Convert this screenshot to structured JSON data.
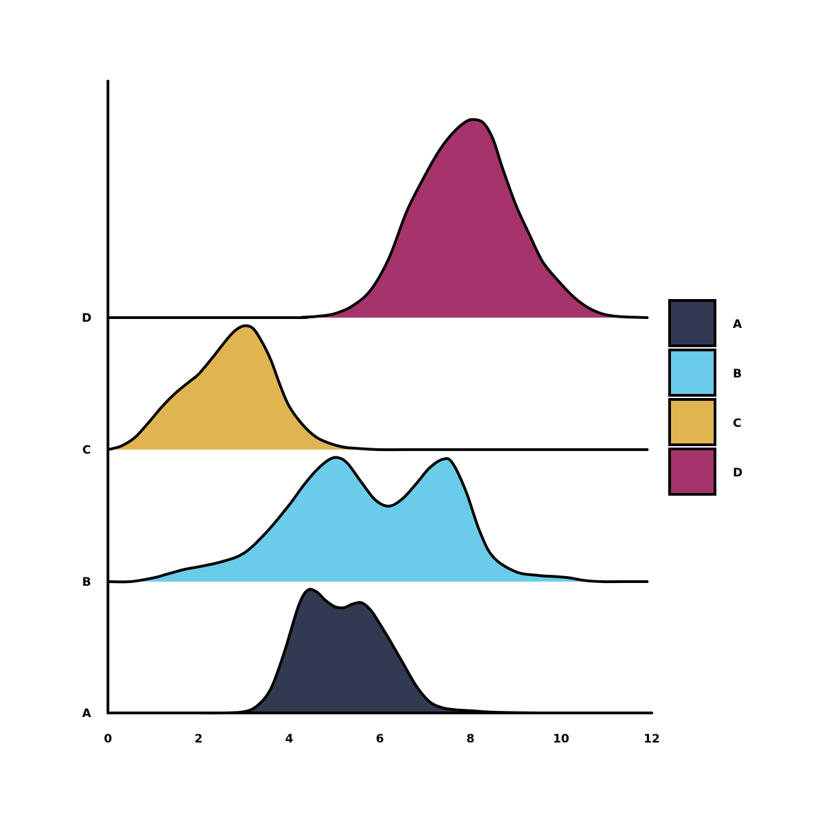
{
  "chart_data": {
    "type": "ridgeline",
    "title": "",
    "xlabel": "",
    "ylabel": "",
    "xlim": [
      0,
      12
    ],
    "x_ticks": [
      0,
      2,
      4,
      6,
      8,
      10,
      12
    ],
    "categories": [
      "A",
      "B",
      "C",
      "D"
    ],
    "legend": {
      "position": "right",
      "entries": [
        "A",
        "B",
        "C",
        "D"
      ]
    },
    "series": [
      {
        "name": "A",
        "color": "#323a52",
        "density_peak": 1.0,
        "x": [
          1.0,
          1.5,
          2.0,
          2.5,
          3.0,
          3.3,
          3.6,
          3.9,
          4.2,
          4.4,
          4.6,
          4.8,
          5.0,
          5.2,
          5.4,
          5.6,
          5.8,
          6.0,
          6.2,
          6.5,
          6.8,
          7.1,
          7.4,
          7.7,
          8.0,
          8.3,
          8.6,
          9.0,
          9.5,
          10.0,
          10.5,
          11.0,
          11.9
        ],
        "y": [
          0.0,
          0.0,
          0.0,
          0.0,
          0.01,
          0.06,
          0.2,
          0.5,
          0.86,
          0.99,
          0.98,
          0.91,
          0.86,
          0.85,
          0.88,
          0.89,
          0.83,
          0.72,
          0.6,
          0.41,
          0.22,
          0.09,
          0.04,
          0.025,
          0.018,
          0.01,
          0.005,
          0.002,
          0.0,
          0.0,
          0.0,
          0.0,
          0.0
        ]
      },
      {
        "name": "B",
        "color": "#6bcce9",
        "density_peak": 1.0,
        "x": [
          0.0,
          0.5,
          1.0,
          1.3,
          1.7,
          2.0,
          2.5,
          3.0,
          3.5,
          4.0,
          4.3,
          4.6,
          4.9,
          5.1,
          5.3,
          5.6,
          5.9,
          6.2,
          6.5,
          6.8,
          7.1,
          7.4,
          7.6,
          7.9,
          8.2,
          8.5,
          9.0,
          9.5,
          9.9,
          10.2,
          10.5,
          10.9,
          11.3,
          11.9
        ],
        "y": [
          0.0,
          0.0,
          0.03,
          0.06,
          0.1,
          0.12,
          0.16,
          0.23,
          0.4,
          0.62,
          0.77,
          0.9,
          0.99,
          1.0,
          0.95,
          0.8,
          0.66,
          0.61,
          0.67,
          0.79,
          0.92,
          0.99,
          0.96,
          0.73,
          0.41,
          0.2,
          0.08,
          0.05,
          0.04,
          0.03,
          0.01,
          0.0,
          0.0,
          0.0
        ]
      },
      {
        "name": "C",
        "color": "#e0b551",
        "density_peak": 1.0,
        "x": [
          0.0,
          0.3,
          0.6,
          0.9,
          1.2,
          1.5,
          1.8,
          2.0,
          2.3,
          2.6,
          2.8,
          3.0,
          3.2,
          3.4,
          3.6,
          3.8,
          4.0,
          4.3,
          4.6,
          4.9,
          5.2,
          5.5,
          6.0,
          6.5,
          7.0,
          8.0,
          9.0,
          10.0,
          11.0,
          11.9
        ],
        "y": [
          0.0,
          0.03,
          0.1,
          0.22,
          0.35,
          0.46,
          0.55,
          0.61,
          0.74,
          0.88,
          0.96,
          1.0,
          0.98,
          0.87,
          0.72,
          0.52,
          0.35,
          0.2,
          0.1,
          0.05,
          0.02,
          0.01,
          0.0,
          0.0,
          0.0,
          0.0,
          0.0,
          0.0,
          0.0,
          0.0
        ]
      },
      {
        "name": "D",
        "color": "#a6336c",
        "density_peak": 1.6,
        "x": [
          0.0,
          4.0,
          4.3,
          4.6,
          5.0,
          5.4,
          5.8,
          6.2,
          6.6,
          7.0,
          7.3,
          7.6,
          7.9,
          8.1,
          8.3,
          8.5,
          8.7,
          9.0,
          9.3,
          9.6,
          10.0,
          10.3,
          10.6,
          10.9,
          11.2,
          11.6,
          11.9
        ],
        "y": [
          0.0,
          0.0,
          0.002,
          0.006,
          0.02,
          0.06,
          0.14,
          0.3,
          0.54,
          0.72,
          0.84,
          0.93,
          0.99,
          1.0,
          0.98,
          0.9,
          0.76,
          0.57,
          0.42,
          0.28,
          0.17,
          0.1,
          0.05,
          0.02,
          0.007,
          0.002,
          0.0
        ]
      }
    ]
  }
}
